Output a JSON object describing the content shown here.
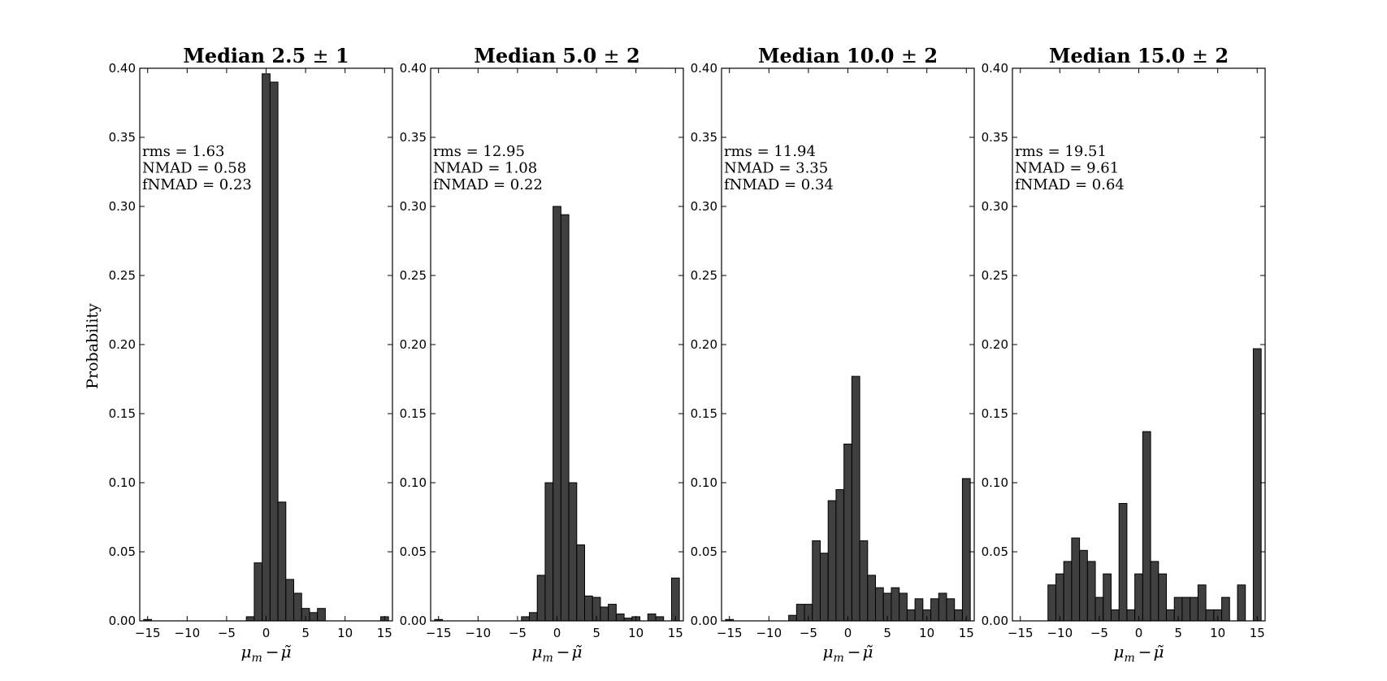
{
  "figure": {
    "ylabel": "Probability",
    "bar_color": "#404040",
    "edge_color": "#000000"
  },
  "chart_data": [
    {
      "type": "bar",
      "title_main": "Median 2.5",
      "title_pm": "± 1",
      "xlabel_symbol": "μ",
      "xlabel_sub": "m",
      "xlabel_minus": "−",
      "xlabel_tilde": "μ̃",
      "xlim": [
        -16,
        16
      ],
      "ylim": [
        0,
        0.4
      ],
      "xticks": [
        -15,
        -10,
        -5,
        0,
        5,
        10,
        15
      ],
      "xtick_labels": [
        "−15",
        "−10",
        "−5",
        "0",
        "5",
        "10",
        "15"
      ],
      "yticks": [
        0,
        0.05,
        0.1,
        0.15,
        0.2,
        0.25,
        0.3,
        0.35,
        0.4
      ],
      "ytick_labels": [
        "0.00",
        "0.05",
        "0.10",
        "0.15",
        "0.20",
        "0.25",
        "0.30",
        "0.35",
        "0.40"
      ],
      "stats": [
        "rms = 1.63",
        "NMAD = 0.58",
        "fNMAD = 0.23"
      ],
      "bins": [
        {
          "x": -15.0,
          "v": 0.001
        },
        {
          "x": -2.0,
          "v": 0.003
        },
        {
          "x": -1.0,
          "v": 0.042
        },
        {
          "x": 0.0,
          "v": 0.396
        },
        {
          "x": 1.0,
          "v": 0.39
        },
        {
          "x": 2.0,
          "v": 0.086
        },
        {
          "x": 3.0,
          "v": 0.03
        },
        {
          "x": 4.0,
          "v": 0.02
        },
        {
          "x": 5.0,
          "v": 0.009
        },
        {
          "x": 6.0,
          "v": 0.006
        },
        {
          "x": 7.0,
          "v": 0.009
        },
        {
          "x": 15.0,
          "v": 0.003
        }
      ],
      "bin_width": 1.0
    },
    {
      "type": "bar",
      "title_main": "Median 5.0",
      "title_pm": "± 2",
      "xlabel_symbol": "μ",
      "xlabel_sub": "m",
      "xlabel_minus": "−",
      "xlabel_tilde": "μ̃",
      "xlim": [
        -16,
        16
      ],
      "ylim": [
        0,
        0.4
      ],
      "xticks": [
        -15,
        -10,
        -5,
        0,
        5,
        10,
        15
      ],
      "xtick_labels": [
        "−15",
        "−10",
        "−5",
        "0",
        "5",
        "10",
        "15"
      ],
      "yticks": [
        0,
        0.05,
        0.1,
        0.15,
        0.2,
        0.25,
        0.3,
        0.35,
        0.4
      ],
      "ytick_labels": [
        "0.00",
        "0.05",
        "0.10",
        "0.15",
        "0.20",
        "0.25",
        "0.30",
        "0.35",
        "0.40"
      ],
      "stats": [
        "rms = 12.95",
        "NMAD = 1.08",
        "fNMAD = 0.22"
      ],
      "bins": [
        {
          "x": -15.0,
          "v": 0.001
        },
        {
          "x": -4.0,
          "v": 0.003
        },
        {
          "x": -3.0,
          "v": 0.006
        },
        {
          "x": -2.0,
          "v": 0.033
        },
        {
          "x": -1.0,
          "v": 0.1
        },
        {
          "x": 0.0,
          "v": 0.3
        },
        {
          "x": 1.0,
          "v": 0.294
        },
        {
          "x": 2.0,
          "v": 0.1
        },
        {
          "x": 3.0,
          "v": 0.055
        },
        {
          "x": 4.0,
          "v": 0.018
        },
        {
          "x": 5.0,
          "v": 0.017
        },
        {
          "x": 6.0,
          "v": 0.01
        },
        {
          "x": 7.0,
          "v": 0.012
        },
        {
          "x": 8.0,
          "v": 0.005
        },
        {
          "x": 9.0,
          "v": 0.002
        },
        {
          "x": 10.0,
          "v": 0.003
        },
        {
          "x": 12.0,
          "v": 0.005
        },
        {
          "x": 13.0,
          "v": 0.003
        },
        {
          "x": 15.0,
          "v": 0.031
        }
      ],
      "bin_width": 1.0
    },
    {
      "type": "bar",
      "title_main": "Median 10.0",
      "title_pm": "± 2",
      "xlabel_symbol": "μ",
      "xlabel_sub": "m",
      "xlabel_minus": "−",
      "xlabel_tilde": "μ̃",
      "xlim": [
        -16,
        16
      ],
      "ylim": [
        0,
        0.4
      ],
      "xticks": [
        -15,
        -10,
        -5,
        0,
        5,
        10,
        15
      ],
      "xtick_labels": [
        "−15",
        "−10",
        "−5",
        "0",
        "5",
        "10",
        "15"
      ],
      "yticks": [
        0,
        0.05,
        0.1,
        0.15,
        0.2,
        0.25,
        0.3,
        0.35,
        0.4
      ],
      "ytick_labels": [
        "0.00",
        "0.05",
        "0.10",
        "0.15",
        "0.20",
        "0.25",
        "0.30",
        "0.35",
        "0.40"
      ],
      "stats": [
        "rms = 11.94",
        "NMAD = 3.35",
        "fNMAD = 0.34"
      ],
      "bins": [
        {
          "x": -15.0,
          "v": 0.001
        },
        {
          "x": -7.0,
          "v": 0.004
        },
        {
          "x": -6.0,
          "v": 0.012
        },
        {
          "x": -5.0,
          "v": 0.012
        },
        {
          "x": -4.0,
          "v": 0.058
        },
        {
          "x": -3.0,
          "v": 0.049
        },
        {
          "x": -2.0,
          "v": 0.087
        },
        {
          "x": -1.0,
          "v": 0.095
        },
        {
          "x": 0.0,
          "v": 0.128
        },
        {
          "x": 1.0,
          "v": 0.177
        },
        {
          "x": 2.0,
          "v": 0.058
        },
        {
          "x": 3.0,
          "v": 0.033
        },
        {
          "x": 4.0,
          "v": 0.024
        },
        {
          "x": 5.0,
          "v": 0.02
        },
        {
          "x": 6.0,
          "v": 0.024
        },
        {
          "x": 7.0,
          "v": 0.02
        },
        {
          "x": 8.0,
          "v": 0.008
        },
        {
          "x": 9.0,
          "v": 0.016
        },
        {
          "x": 10.0,
          "v": 0.008
        },
        {
          "x": 11.0,
          "v": 0.016
        },
        {
          "x": 12.0,
          "v": 0.02
        },
        {
          "x": 13.0,
          "v": 0.016
        },
        {
          "x": 14.0,
          "v": 0.008
        },
        {
          "x": 15.0,
          "v": 0.103
        }
      ],
      "bin_width": 1.0
    },
    {
      "type": "bar",
      "title_main": "Median 15.0",
      "title_pm": "± 2",
      "xlabel_symbol": "μ",
      "xlabel_sub": "m",
      "xlabel_minus": "−",
      "xlabel_tilde": "μ̃",
      "xlim": [
        -16,
        16
      ],
      "ylim": [
        0,
        0.4
      ],
      "xticks": [
        -15,
        -10,
        -5,
        0,
        5,
        10,
        15
      ],
      "xtick_labels": [
        "−15",
        "−10",
        "−5",
        "0",
        "5",
        "10",
        "15"
      ],
      "yticks": [
        0,
        0.05,
        0.1,
        0.15,
        0.2,
        0.25,
        0.3,
        0.35,
        0.4
      ],
      "ytick_labels": [
        "0.00",
        "0.05",
        "0.10",
        "0.15",
        "0.20",
        "0.25",
        "0.30",
        "0.35",
        "0.40"
      ],
      "stats": [
        "rms = 19.51",
        "NMAD = 9.61",
        "fNMAD = 0.64"
      ],
      "bins": [
        {
          "x": -11.0,
          "v": 0.026
        },
        {
          "x": -10.0,
          "v": 0.034
        },
        {
          "x": -9.0,
          "v": 0.043
        },
        {
          "x": -8.0,
          "v": 0.06
        },
        {
          "x": -7.0,
          "v": 0.051
        },
        {
          "x": -6.0,
          "v": 0.043
        },
        {
          "x": -5.0,
          "v": 0.017
        },
        {
          "x": -4.0,
          "v": 0.034
        },
        {
          "x": -3.0,
          "v": 0.008
        },
        {
          "x": -2.0,
          "v": 0.085
        },
        {
          "x": -1.0,
          "v": 0.008
        },
        {
          "x": 0.0,
          "v": 0.034
        },
        {
          "x": 1.0,
          "v": 0.137
        },
        {
          "x": 2.0,
          "v": 0.043
        },
        {
          "x": 3.0,
          "v": 0.034
        },
        {
          "x": 4.0,
          "v": 0.008
        },
        {
          "x": 5.0,
          "v": 0.017
        },
        {
          "x": 6.0,
          "v": 0.017
        },
        {
          "x": 7.0,
          "v": 0.017
        },
        {
          "x": 8.0,
          "v": 0.026
        },
        {
          "x": 9.0,
          "v": 0.008
        },
        {
          "x": 10.0,
          "v": 0.008
        },
        {
          "x": 11.0,
          "v": 0.017
        },
        {
          "x": 13.0,
          "v": 0.026
        },
        {
          "x": 15.0,
          "v": 0.197
        }
      ],
      "bin_width": 1.0
    }
  ]
}
